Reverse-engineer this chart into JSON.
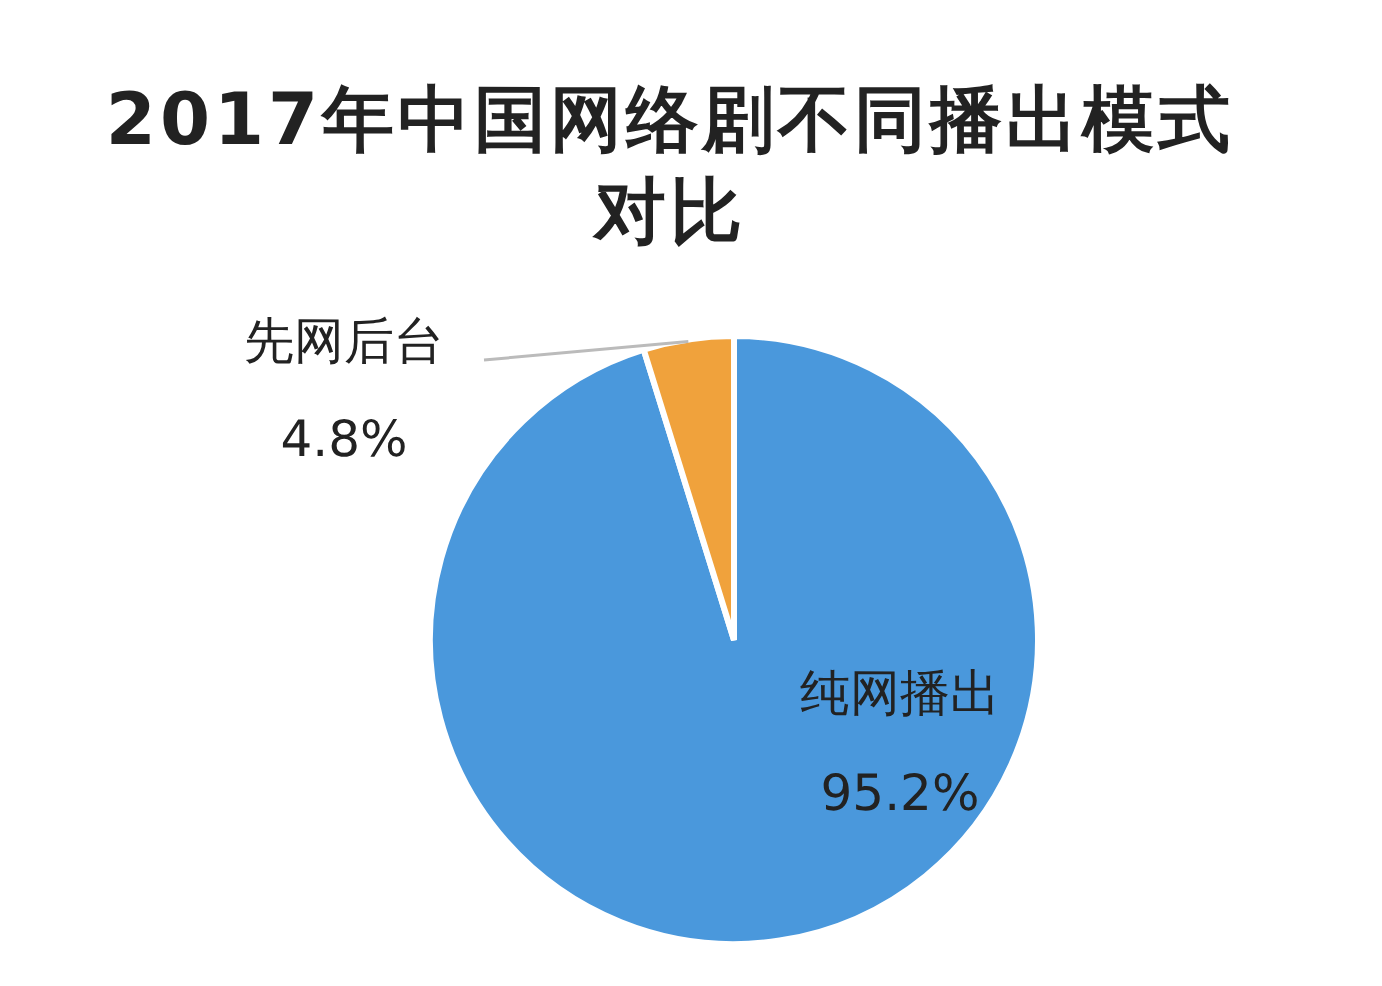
{
  "chart_data": {
    "type": "pie",
    "title": "2017年中国网络剧不同播出模式对比",
    "categories": [
      "纯网播出",
      "先网后台"
    ],
    "values": [
      95.2,
      4.8
    ],
    "value_labels": [
      "95.2%",
      "4.8%"
    ],
    "colors": [
      "#4a98dc",
      "#f0a23c"
    ]
  }
}
